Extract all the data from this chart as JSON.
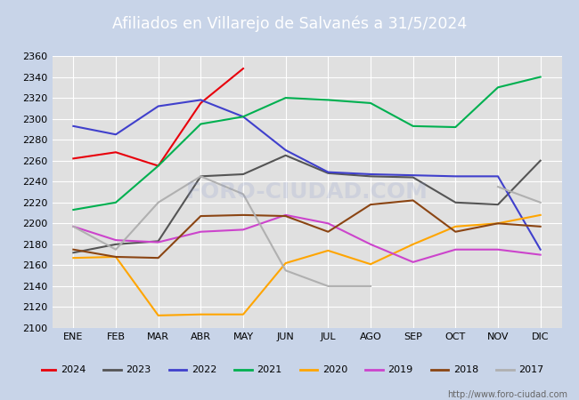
{
  "title": "Afiliados en Villarejo de Salvanés a 31/5/2024",
  "title_color": "white",
  "title_bg_color": "#3a5ca8",
  "ylim": [
    2100,
    2360
  ],
  "yticks": [
    2100,
    2120,
    2140,
    2160,
    2180,
    2200,
    2220,
    2240,
    2260,
    2280,
    2300,
    2320,
    2340,
    2360
  ],
  "months": [
    "ENE",
    "FEB",
    "MAR",
    "ABR",
    "MAY",
    "JUN",
    "JUL",
    "AGO",
    "SEP",
    "OCT",
    "NOV",
    "DIC"
  ],
  "series": [
    {
      "label": "2024",
      "color": "#e8000b",
      "data": [
        2262,
        2268,
        2255,
        2315,
        2348,
        null,
        null,
        null,
        null,
        null,
        null,
        null
      ]
    },
    {
      "label": "2023",
      "color": "#555555",
      "data": [
        2172,
        2180,
        2183,
        2245,
        2247,
        2265,
        2248,
        2245,
        2244,
        2220,
        2218,
        2260
      ]
    },
    {
      "label": "2022",
      "color": "#4040cc",
      "data": [
        2293,
        2285,
        2312,
        2318,
        2302,
        2270,
        2249,
        2247,
        2246,
        2245,
        2245,
        2175
      ]
    },
    {
      "label": "2021",
      "color": "#00b050",
      "data": [
        2213,
        2220,
        2255,
        2295,
        2302,
        2320,
        2318,
        2315,
        2293,
        2292,
        2330,
        2340
      ]
    },
    {
      "label": "2020",
      "color": "#ffa500",
      "data": [
        2167,
        2168,
        2112,
        2113,
        2113,
        2162,
        2174,
        2161,
        2180,
        2197,
        2200,
        2208
      ]
    },
    {
      "label": "2019",
      "color": "#cc44cc",
      "data": [
        2197,
        2184,
        2182,
        2192,
        2194,
        2208,
        2200,
        2180,
        2163,
        2175,
        2175,
        2170
      ]
    },
    {
      "label": "2018",
      "color": "#8b4513",
      "data": [
        2175,
        2168,
        2167,
        2207,
        2208,
        2207,
        2192,
        2218,
        2222,
        2192,
        2200,
        2197
      ]
    },
    {
      "label": "2017",
      "color": "#b0b0b0",
      "data": [
        2197,
        2175,
        2220,
        2245,
        2228,
        2155,
        2140,
        2140,
        null,
        null,
        2235,
        2220
      ]
    }
  ],
  "fig_bg_color": "#c8d4e8",
  "plot_bg_color": "#e0e0e0",
  "grid_color": "white",
  "legend_bg": "white",
  "legend_edge": "#888888",
  "url_text": "http://www.foro-ciudad.com",
  "url_color": "#666666"
}
